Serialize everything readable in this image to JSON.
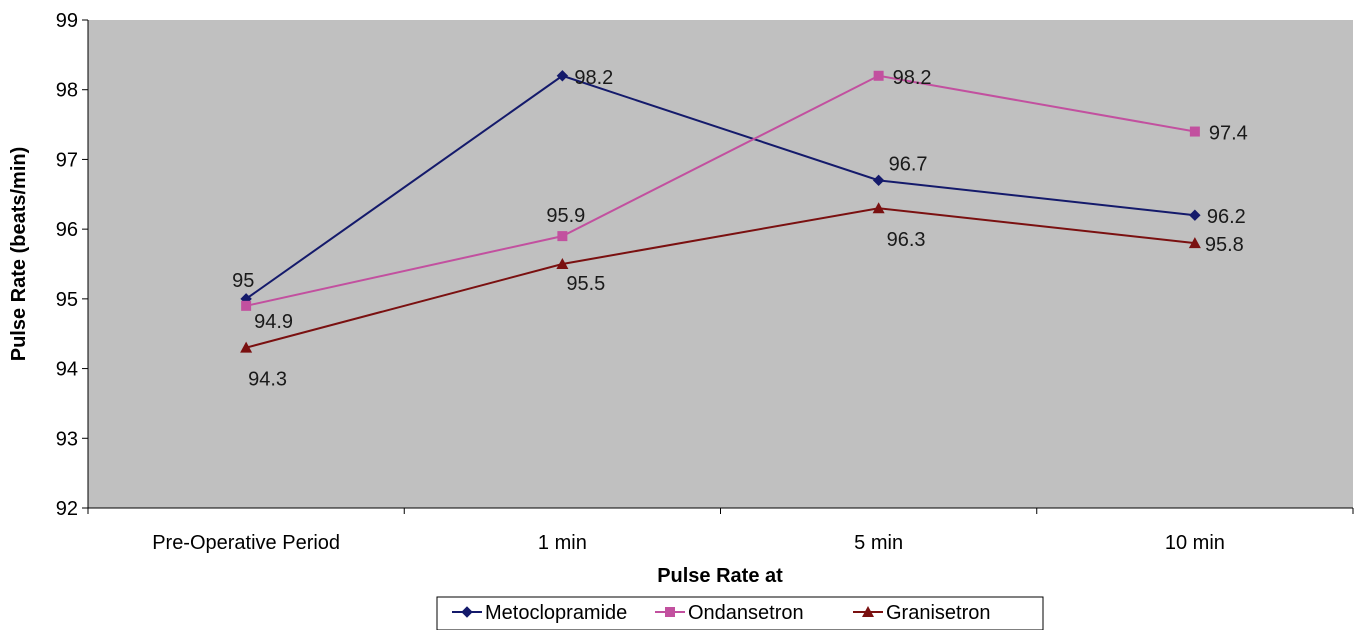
{
  "chart_data": {
    "type": "line",
    "categories": [
      "Pre-Operative Period",
      "1 min",
      "5 min",
      "10 min"
    ],
    "series": [
      {
        "name": "Metoclopramide",
        "values": [
          95,
          98.2,
          96.7,
          96.2
        ],
        "labels": [
          "95",
          "98.2",
          "96.7",
          "96.2"
        ],
        "color": "#141a6b",
        "marker": "diamond"
      },
      {
        "name": "Ondansetron",
        "values": [
          94.9,
          95.9,
          98.2,
          97.4
        ],
        "labels": [
          "94.9",
          "95.9",
          "98.2",
          "97.4"
        ],
        "color": "#c2509f",
        "marker": "square"
      },
      {
        "name": "Granisetron",
        "values": [
          94.3,
          95.5,
          96.3,
          95.8
        ],
        "labels": [
          "94.3",
          "95.5",
          "96.3",
          "95.8"
        ],
        "color": "#7a1010",
        "marker": "triangle"
      }
    ],
    "xlabel": "Pulse Rate at",
    "ylabel": "Pulse Rate (beats/min)",
    "ylim": [
      92,
      99
    ],
    "yticks": [
      "92",
      "93",
      "94",
      "95",
      "96",
      "97",
      "98",
      "99"
    ],
    "plot_background": "#c0c0c0",
    "grid": false,
    "legend_position": "bottom"
  }
}
